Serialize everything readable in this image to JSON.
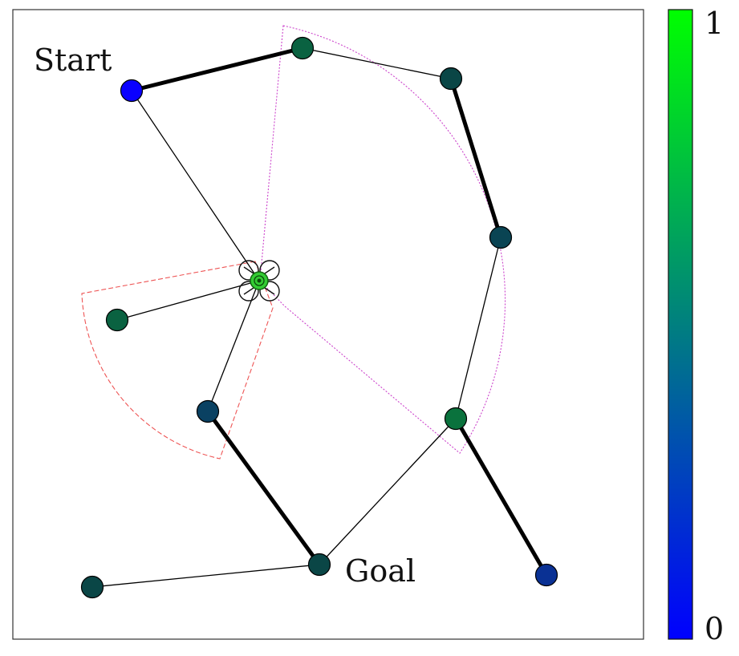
{
  "labels": {
    "start": "Start",
    "goal": "Goal"
  },
  "colorbar": {
    "max_label": "1",
    "min_label": "0",
    "color_low": "#0000ff",
    "color_high": "#00ff00"
  },
  "colors": {
    "node_stroke": "#000000",
    "edge": "#000000",
    "fov_large": "#cc44cc",
    "fov_small": "#ee5555",
    "drone": "#33cc33"
  },
  "nodes": [
    {
      "id": "start",
      "value": 0.0
    },
    {
      "id": "n-top",
      "value": 0.6
    },
    {
      "id": "n-right-upper",
      "value": 0.5
    },
    {
      "id": "n-right-middle",
      "value": 0.45
    },
    {
      "id": "n-right-lower",
      "value": 0.65
    },
    {
      "id": "n-bottom-right",
      "value": 0.25
    },
    {
      "id": "n-left",
      "value": 0.6
    },
    {
      "id": "n-left-lower",
      "value": 0.4
    },
    {
      "id": "goal",
      "value": 0.5
    },
    {
      "id": "n-bottom-left",
      "value": 0.5
    }
  ],
  "edges": [
    {
      "from": "start",
      "to": "n-top",
      "bold": true
    },
    {
      "from": "n-top",
      "to": "n-right-upper",
      "bold": false
    },
    {
      "from": "n-right-upper",
      "to": "n-right-middle",
      "bold": true
    },
    {
      "from": "n-right-middle",
      "to": "n-right-lower",
      "bold": false
    },
    {
      "from": "n-right-lower",
      "to": "n-bottom-right",
      "bold": true
    },
    {
      "from": "n-right-lower",
      "to": "goal",
      "bold": false
    },
    {
      "from": "start",
      "to": "drone",
      "bold": false
    },
    {
      "from": "drone",
      "to": "n-left",
      "bold": false
    },
    {
      "from": "drone",
      "to": "n-left-lower",
      "bold": false
    },
    {
      "from": "n-left-lower",
      "to": "goal",
      "bold": true
    },
    {
      "from": "goal",
      "to": "n-bottom-left",
      "bold": false
    }
  ]
}
